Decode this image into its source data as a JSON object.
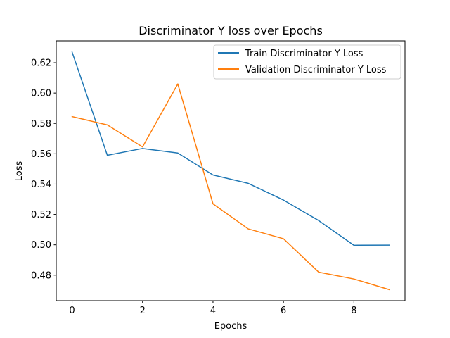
{
  "chart_data": {
    "type": "line",
    "title": "Discriminator Y loss over Epochs",
    "xlabel": "Epochs",
    "ylabel": "Loss",
    "x": [
      0,
      1,
      2,
      3,
      4,
      5,
      6,
      7,
      8,
      9
    ],
    "xlim": [
      -0.45,
      9.45
    ],
    "ylim": [
      0.4632,
      0.6344
    ],
    "xticks": [
      0,
      2,
      4,
      6,
      8
    ],
    "xtick_labels": [
      "0",
      "2",
      "4",
      "6",
      "8"
    ],
    "yticks": [
      0.48,
      0.5,
      0.52,
      0.54,
      0.56,
      0.58,
      0.6,
      0.62
    ],
    "ytick_labels": [
      "0.48",
      "0.50",
      "0.52",
      "0.54",
      "0.56",
      "0.58",
      "0.60",
      "0.62"
    ],
    "grid": false,
    "legend_position": "top-right",
    "series": [
      {
        "name": "Train Discriminator Y Loss",
        "color": "#1f77b4",
        "values": [
          0.627,
          0.559,
          0.5635,
          0.5605,
          0.546,
          0.5405,
          0.5295,
          0.516,
          0.4997,
          0.4998
        ]
      },
      {
        "name": "Validation Discriminator Y Loss",
        "color": "#ff7f0e",
        "values": [
          0.5845,
          0.579,
          0.5645,
          0.606,
          0.527,
          0.5105,
          0.504,
          0.482,
          0.4775,
          0.4705
        ]
      }
    ]
  }
}
